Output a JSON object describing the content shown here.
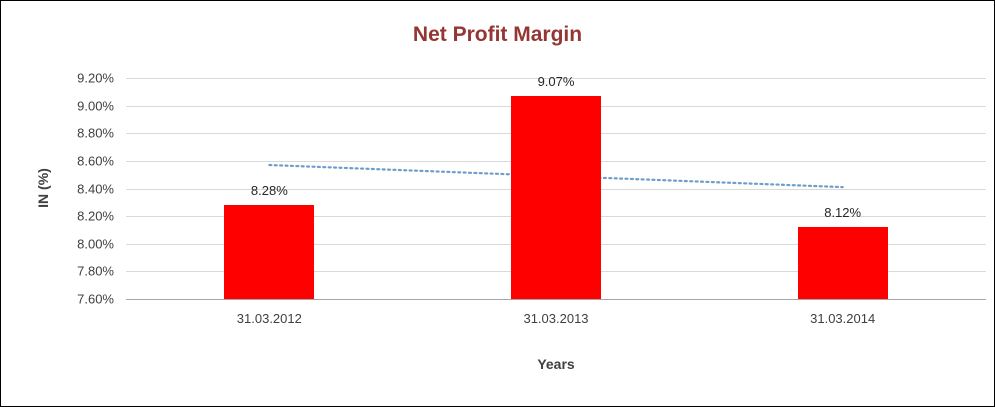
{
  "chart_data": {
    "type": "bar",
    "title": "Net Profit Margin",
    "xlabel": "Years",
    "ylabel": "IN (%)",
    "categories": [
      "31.03.2012",
      "31.03.2013",
      "31.03.2014"
    ],
    "values": [
      8.28,
      9.07,
      8.12
    ],
    "data_labels": [
      "8.28%",
      "9.07%",
      "8.12%"
    ],
    "ylim": [
      7.6,
      9.2
    ],
    "ytick_step": 0.2,
    "ytick_labels": [
      "7.60%",
      "7.80%",
      "8.00%",
      "8.20%",
      "8.40%",
      "8.60%",
      "8.80%",
      "9.00%",
      "9.20%"
    ],
    "grid": true,
    "legend": "none",
    "bar_color": "#FF0000",
    "trendline": {
      "style": "dotted",
      "color": "#6E9DC9",
      "start": 8.57,
      "end": 8.41
    }
  },
  "colors": {
    "title_text": "#943634",
    "axis_text": "#3F3F3F",
    "gridline": "#D9D9D9"
  }
}
